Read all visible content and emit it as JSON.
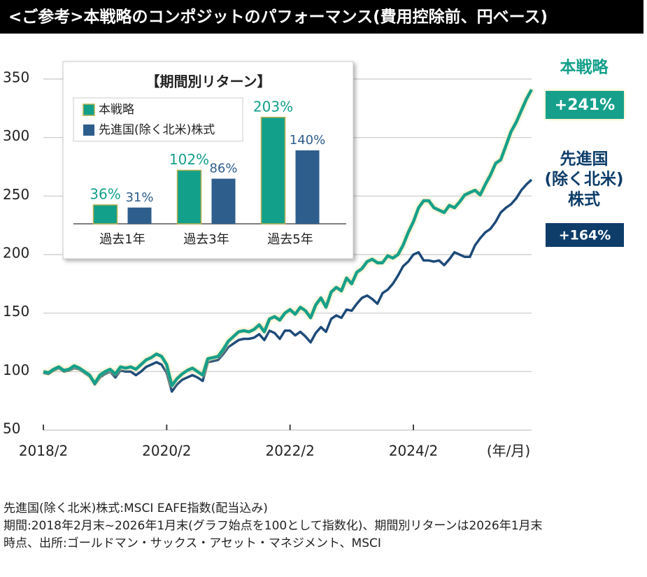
{
  "chart_data": [
    {
      "type": "line",
      "title": "<ご参考>本戦略のコンポジットのパフォーマンス(費用控除前、円ベース)",
      "x": [
        "2018/2",
        "2018/3",
        "2018/4",
        "2018/5",
        "2018/6",
        "2018/7",
        "2018/8",
        "2018/9",
        "2018/10",
        "2018/11",
        "2018/12",
        "2019/1",
        "2019/2",
        "2019/3",
        "2019/4",
        "2019/5",
        "2019/6",
        "2019/7",
        "2019/8",
        "2019/9",
        "2019/10",
        "2019/11",
        "2019/12",
        "2020/1",
        "2020/2",
        "2020/3",
        "2020/4",
        "2020/5",
        "2020/6",
        "2020/7",
        "2020/8",
        "2020/9",
        "2020/10",
        "2020/11",
        "2020/12",
        "2021/1",
        "2021/2",
        "2021/3",
        "2021/4",
        "2021/5",
        "2021/6",
        "2021/7",
        "2021/8",
        "2021/9",
        "2021/10",
        "2021/11",
        "2021/12",
        "2022/1",
        "2022/2",
        "2022/3",
        "2022/4",
        "2022/5",
        "2022/6",
        "2022/7",
        "2022/8",
        "2022/9",
        "2022/10",
        "2022/11",
        "2022/12",
        "2023/1",
        "2023/2",
        "2023/3",
        "2023/4",
        "2023/5",
        "2023/6",
        "2023/7",
        "2023/8",
        "2023/9",
        "2023/10",
        "2023/11",
        "2023/12",
        "2024/1",
        "2024/2",
        "2024/3",
        "2024/4",
        "2024/5",
        "2024/6",
        "2024/7",
        "2024/8",
        "2024/9",
        "2024/10",
        "2024/11",
        "2024/12",
        "2025/1",
        "2025/2",
        "2025/3",
        "2025/4",
        "2025/5",
        "2025/6",
        "2025/7",
        "2025/8",
        "2025/9",
        "2025/10",
        "2025/11",
        "2025/12",
        "2026/1"
      ],
      "series": [
        {
          "name": "先進国(除く北米)株式",
          "color": "#1d4a78",
          "values": [
            99,
            98,
            101,
            103,
            100,
            101,
            103,
            102,
            99,
            96,
            89,
            95,
            98,
            100,
            95,
            101,
            100,
            100,
            97,
            100,
            104,
            106,
            108,
            106,
            99,
            83,
            89,
            93,
            95,
            97,
            95,
            92,
            108,
            109,
            110,
            115,
            121,
            124,
            127,
            128,
            128,
            129,
            132,
            127,
            135,
            133,
            128,
            135,
            135,
            131,
            134,
            130,
            125,
            133,
            138,
            134,
            145,
            148,
            146,
            153,
            152,
            158,
            163,
            165,
            162,
            158,
            167,
            170,
            175,
            182,
            190,
            194,
            200,
            202,
            195,
            195,
            194,
            195,
            191,
            196,
            202,
            200,
            198,
            198,
            208,
            214,
            219,
            222,
            228,
            236,
            240,
            243,
            248,
            255,
            260,
            264
          ]
        },
        {
          "name": "本戦略",
          "color": "#13a08b",
          "values": [
            100,
            99,
            102,
            104,
            101,
            102,
            105,
            103,
            100,
            97,
            90,
            97,
            100,
            102,
            98,
            104,
            103,
            104,
            102,
            106,
            110,
            112,
            115,
            113,
            106,
            88,
            94,
            98,
            101,
            103,
            100,
            97,
            111,
            112,
            113,
            119,
            126,
            130,
            134,
            135,
            134,
            136,
            140,
            134,
            145,
            147,
            144,
            150,
            153,
            149,
            155,
            152,
            146,
            157,
            163,
            155,
            168,
            172,
            169,
            180,
            175,
            185,
            188,
            194,
            196,
            193,
            193,
            199,
            197,
            200,
            208,
            219,
            228,
            240,
            246,
            246,
            240,
            238,
            236,
            242,
            240,
            245,
            251,
            253,
            255,
            251,
            260,
            268,
            278,
            281,
            293,
            305,
            313,
            323,
            333,
            341
          ]
        }
      ],
      "xlim": [
        "2018/2",
        "2026/1"
      ],
      "xticks": [
        "2018/2",
        "2020/2",
        "2022/2",
        "2024/2"
      ],
      "x_label": "(年/月)",
      "ylim": [
        50,
        350
      ],
      "yticks": [
        50,
        100,
        150,
        200,
        250,
        300,
        350
      ],
      "grid": true,
      "annotations": [
        {
          "lines": [
            "本戦略"
          ],
          "box": "+241%",
          "color": "#13a08b"
        },
        {
          "lines": [
            "先進国",
            "(除く北米)",
            "株式"
          ],
          "box": "+164%",
          "color": "#0e3d6a"
        }
      ]
    },
    {
      "type": "bar",
      "title": "【期間別リターン】",
      "categories": [
        "過去1年",
        "過去3年",
        "過去5年"
      ],
      "series": [
        {
          "name": "本戦略",
          "color": "#13a08b",
          "values": [
            36,
            102,
            203
          ],
          "value_labels": [
            "36%",
            "102%",
            "203%"
          ]
        },
        {
          "name": "先進国(除く北米)株式",
          "color": "#2e5e8c",
          "values": [
            31,
            86,
            140
          ],
          "value_labels": [
            "31%",
            "86%",
            "140%"
          ]
        }
      ]
    }
  ],
  "notes": [
    "先進国(除く北米)株式:MSCI EAFE指数(配当込み)",
    "期間:2018年2月末~2026年1月末(グラフ始点を100として指数化)、期間別リターンは2026年1月末",
    "時点、出所:ゴールドマン・サックス・アセット・マネジメント、MSCI"
  ]
}
